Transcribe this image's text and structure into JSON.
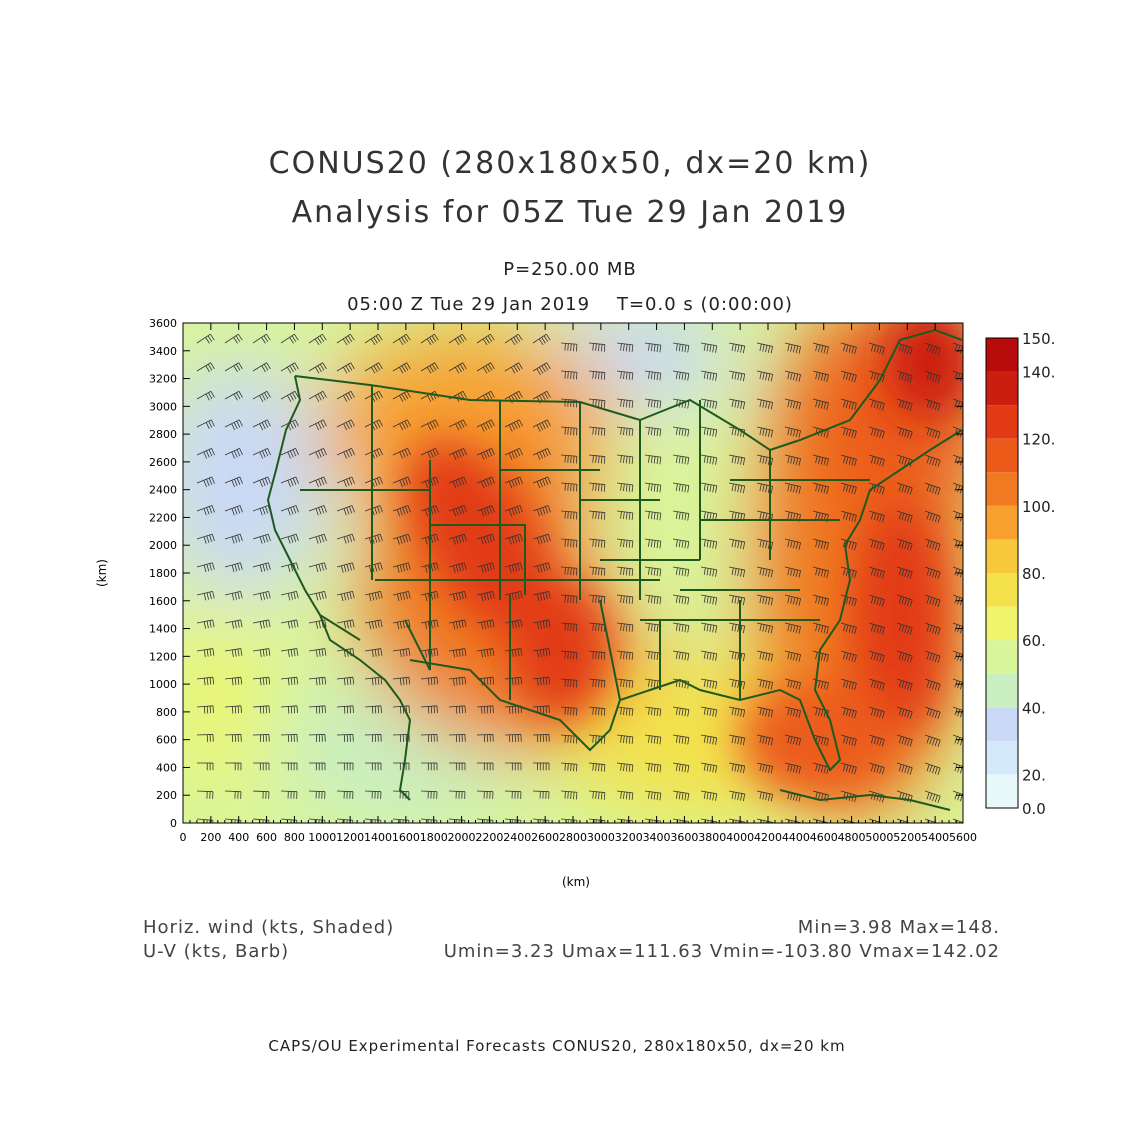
{
  "title_line1": "CONUS20 (280x180x50, dx=20 km)",
  "title_line2": "Analysis for 05Z Tue 29 Jan 2019",
  "level_label": "P=250.00 MB",
  "time_label": "05:00 Z Tue 29 Jan 2019    T=0.0 s (0:00:00)",
  "x_axis": {
    "label": "(km)",
    "ticks": [
      "0",
      "200",
      "400",
      "600",
      "800",
      "1000",
      "1200",
      "1400",
      "1600",
      "1800",
      "2000",
      "2200",
      "2400",
      "2600",
      "2800",
      "3000",
      "3200",
      "3400",
      "3600",
      "3800",
      "4000",
      "4200",
      "4400",
      "4600",
      "4800",
      "5000",
      "5200",
      "5400",
      "5600"
    ]
  },
  "y_axis": {
    "label": "(km)",
    "ticks": [
      "0",
      "200",
      "400",
      "600",
      "800",
      "1000",
      "1200",
      "1400",
      "1600",
      "1800",
      "2000",
      "2200",
      "2400",
      "2600",
      "2800",
      "3000",
      "3200",
      "3400",
      "3600"
    ]
  },
  "colorbar": {
    "labels": [
      "150.",
      "140.",
      "120.",
      "100.",
      "80.",
      "60.",
      "40.",
      "20.",
      "0.0"
    ],
    "bins": [
      {
        "color": "#e8f8fb"
      },
      {
        "color": "#d3e8f8"
      },
      {
        "color": "#c9d9f5"
      },
      {
        "color": "#c9efc0"
      },
      {
        "color": "#d9f59a"
      },
      {
        "color": "#eef56a"
      },
      {
        "color": "#f3e24c"
      },
      {
        "color": "#f8c83c"
      },
      {
        "color": "#f7a030"
      },
      {
        "color": "#f07a22"
      },
      {
        "color": "#ec5b1a"
      },
      {
        "color": "#e23a14"
      },
      {
        "color": "#cc1e10"
      },
      {
        "color": "#b80c0c"
      }
    ]
  },
  "legend_left": {
    "line1": "Horiz. wind (kts, Shaded)",
    "line2": "U-V (kts, Barb)"
  },
  "legend_right": {
    "line1": "Min=3.98 Max=148.",
    "line2": "Umin=3.23 Umax=111.63 Vmin=-103.80 Vmax=142.02"
  },
  "credit": "CAPS/OU Experimental Forecasts  CONUS20, 280x180x50, dx=20 km",
  "colors": {
    "background": "#ffffff",
    "boundary": "#1e5a1e",
    "barb": "#333333"
  }
}
